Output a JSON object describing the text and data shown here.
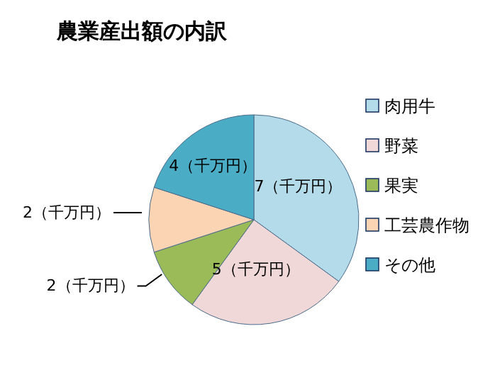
{
  "chart_data": {
    "type": "pie",
    "title": "農業産出額の内訳",
    "categories": [
      "肉用牛",
      "野菜",
      "果実",
      "工芸農作物",
      "その他"
    ],
    "values": [
      7,
      5,
      2,
      2,
      4
    ],
    "value_labels": [
      "7（千万円）",
      "5（千万円）",
      "2（千万円）",
      "2（千万円）",
      "4（千万円）"
    ],
    "colors": [
      "#b3dbe9",
      "#f0d8d8",
      "#9bbb59",
      "#fbd4b4",
      "#4bacc6"
    ],
    "legend": "right"
  }
}
